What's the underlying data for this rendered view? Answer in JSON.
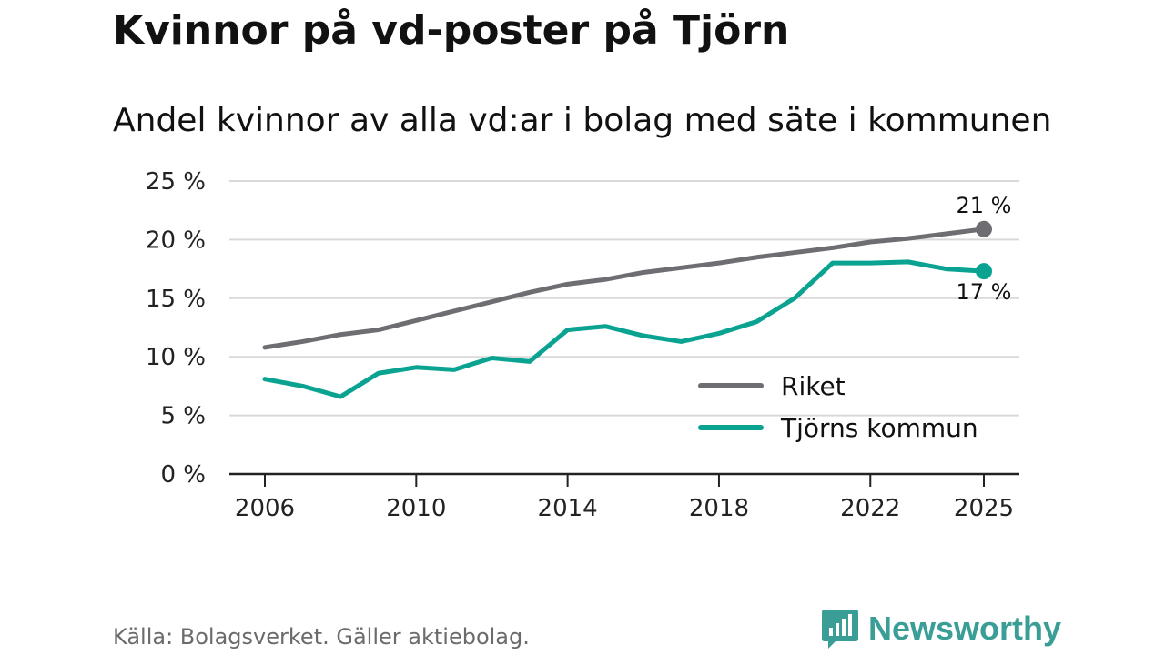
{
  "header": {
    "title": "Kvinnor på vd-poster på Tjörn",
    "subtitle": "Andel kvinnor av alla vd:ar i bolag med säte i kommunen"
  },
  "footer": {
    "source": "Källa: Bolagsverket. Gäller aktiebolag.",
    "brand": "Newsworthy"
  },
  "colors": {
    "riket": "#6e6d72",
    "tjorn": "#0aa391",
    "grid": "#d9d9d9",
    "axis": "#222222",
    "brand": "#3a9e96"
  },
  "chart_data": {
    "type": "line",
    "title": "Kvinnor på vd-poster på Tjörn",
    "subtitle": "Andel kvinnor av alla vd:ar i bolag med säte i kommunen",
    "xlabel": "",
    "ylabel": "",
    "x": [
      2006,
      2007,
      2008,
      2009,
      2010,
      2011,
      2012,
      2013,
      2014,
      2015,
      2016,
      2017,
      2018,
      2019,
      2020,
      2021,
      2022,
      2023,
      2024,
      2025
    ],
    "xlim": [
      2006,
      2025
    ],
    "ylim": [
      0,
      25
    ],
    "x_ticks": [
      2006,
      2010,
      2014,
      2018,
      2022,
      2025
    ],
    "x_tick_labels": [
      "2006",
      "2010",
      "2014",
      "2018",
      "2022",
      "2025"
    ],
    "y_ticks": [
      0,
      5,
      10,
      15,
      20,
      25
    ],
    "y_tick_labels": [
      "0 %",
      "5 %",
      "10 %",
      "15 %",
      "20 %",
      "25 %"
    ],
    "grid": true,
    "legend_position": "bottom-right",
    "series": [
      {
        "name": "Riket",
        "values": [
          10.8,
          11.3,
          11.9,
          12.3,
          13.1,
          13.9,
          14.7,
          15.5,
          16.2,
          16.6,
          17.2,
          17.6,
          18.0,
          18.5,
          18.9,
          19.3,
          19.8,
          20.1,
          20.5,
          20.9
        ],
        "end_label": "21 %"
      },
      {
        "name": "Tjörns kommun",
        "values": [
          8.1,
          7.5,
          6.6,
          8.6,
          9.1,
          8.9,
          9.9,
          9.6,
          12.3,
          12.6,
          11.8,
          11.3,
          12.0,
          13.0,
          15.0,
          18.0,
          18.0,
          18.1,
          17.5,
          17.3
        ],
        "end_label": "17 %"
      }
    ]
  }
}
